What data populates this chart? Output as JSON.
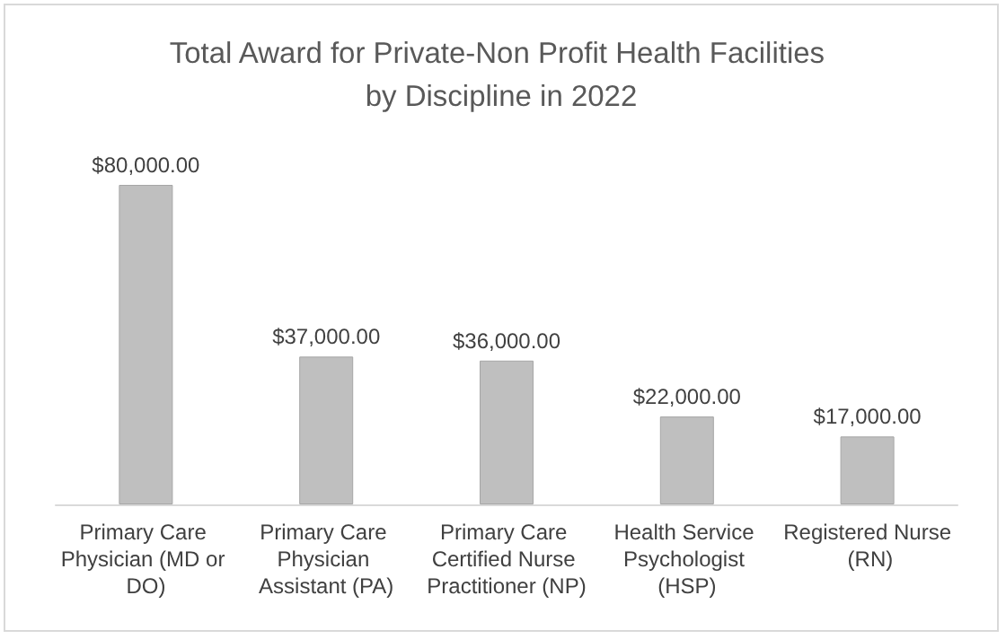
{
  "chart_data": {
    "type": "bar",
    "title": "Total Award for Private-Non Profit Health Facilities by Discipline in 2022",
    "categories": [
      "Primary Care Physician (MD or DO)",
      "Primary Care Physician Assistant (PA)",
      "Primary Care Certified Nurse Practitioner (NP)",
      "Health Service Psychologist (HSP)",
      "Registered Nurse (RN)"
    ],
    "values": [
      80000,
      37000,
      36000,
      22000,
      17000
    ],
    "value_labels": [
      "$80,000.00",
      "$37,000.00",
      "$36,000.00",
      "$22,000.00",
      "$17,000.00"
    ],
    "color": "#bfbfbf"
  }
}
